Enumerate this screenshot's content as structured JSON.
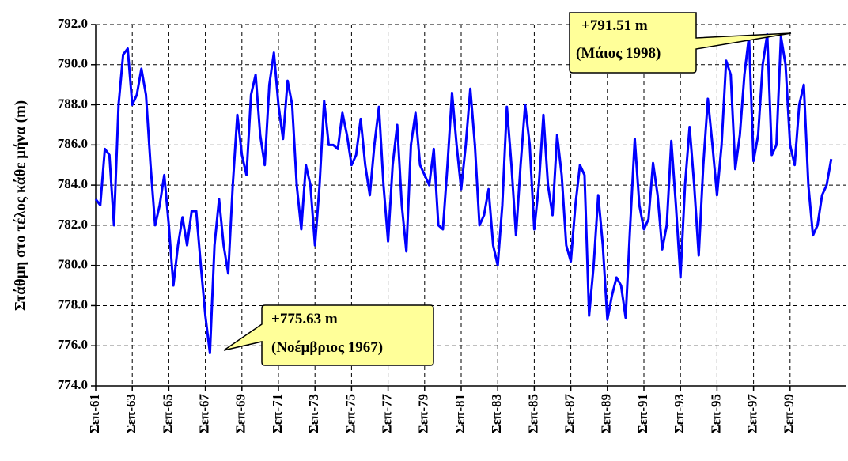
{
  "chart_data": {
    "type": "line",
    "y_label": "Στάθμη στο τέλος κάθε μήνα (m)",
    "categories": [
      "Σεπ-61",
      null,
      null,
      null,
      null,
      null,
      null,
      null,
      "Σεπ-63",
      null,
      null,
      null,
      null,
      null,
      null,
      null,
      "Σεπ-65",
      null,
      null,
      null,
      null,
      null,
      null,
      null,
      "Σεπ-67",
      null,
      null,
      null,
      null,
      null,
      null,
      null,
      "Σεπ-69",
      null,
      null,
      null,
      null,
      null,
      null,
      null,
      "Σεπ-71",
      null,
      null,
      null,
      null,
      null,
      null,
      null,
      "Σεπ-73",
      null,
      null,
      null,
      null,
      null,
      null,
      null,
      "Σεπ-75",
      null,
      null,
      null,
      null,
      null,
      null,
      null,
      "Σεπ-77",
      null,
      null,
      null,
      null,
      null,
      null,
      null,
      "Σεπ-79",
      null,
      null,
      null,
      null,
      null,
      null,
      null,
      "Σεπ-81",
      null,
      null,
      null,
      null,
      null,
      null,
      null,
      "Σεπ-83",
      null,
      null,
      null,
      null,
      null,
      null,
      null,
      "Σεπ-85",
      null,
      null,
      null,
      null,
      null,
      null,
      null,
      "Σεπ-87",
      null,
      null,
      null,
      null,
      null,
      null,
      null,
      "Σεπ-89",
      null,
      null,
      null,
      null,
      null,
      null,
      null,
      "Σεπ-91",
      null,
      null,
      null,
      null,
      null,
      null,
      null,
      "Σεπ-93",
      null,
      null,
      null,
      null,
      null,
      null,
      null,
      "Σεπ-95",
      null,
      null,
      null,
      null,
      null,
      null,
      null,
      "Σεπ-97",
      null,
      null,
      null,
      null,
      null,
      null,
      null,
      "Σεπ-99",
      null,
      null,
      null,
      null,
      null,
      null,
      null,
      null,
      null
    ],
    "series": [
      {
        "name": "Στάθμη",
        "color": "#0000ff",
        "values": [
          783.3,
          783,
          785.8,
          785.5,
          782,
          788,
          790.5,
          790.8,
          788,
          788.5,
          789.8,
          788.5,
          785,
          782,
          783,
          784.5,
          782,
          779,
          781,
          782.4,
          781,
          782.7,
          782.7,
          780,
          777.5,
          775.63,
          781,
          783.3,
          781,
          779.6,
          784,
          787.5,
          785.5,
          784.5,
          788.5,
          789.5,
          786.5,
          785,
          789,
          790.6,
          788,
          786.3,
          789.2,
          788,
          784,
          781.8,
          785,
          784,
          781,
          784,
          788.2,
          786,
          786,
          785.8,
          787.6,
          786.5,
          785,
          785.5,
          787.3,
          785,
          783.5,
          786,
          787.9,
          784,
          781.2,
          785,
          787,
          783,
          780.7,
          786,
          787.6,
          785,
          784.5,
          784,
          785.8,
          782,
          781.8,
          785,
          788.6,
          786,
          783.8,
          786,
          788.8,
          786,
          782,
          782.5,
          783.8,
          781,
          780,
          783,
          787.9,
          785,
          781.5,
          785,
          788,
          786,
          781.8,
          784,
          787.5,
          784,
          782.5,
          786.5,
          784.5,
          781,
          780.2,
          783,
          785,
          784.5,
          777.5,
          780,
          783.5,
          781,
          777.3,
          778.5,
          779.4,
          779,
          777.4,
          782,
          786.3,
          783,
          781.8,
          782.3,
          785.1,
          783.5,
          780.8,
          782,
          786.2,
          783,
          779.4,
          784,
          786.9,
          784,
          780.5,
          785,
          788.3,
          786,
          783.5,
          786,
          790.2,
          789.5,
          784.8,
          786.5,
          789.5,
          791.4,
          785.2,
          786.5,
          790,
          791.51,
          785.5,
          786,
          791.4,
          790,
          786,
          785,
          788,
          789,
          784,
          781.5,
          782,
          783.5,
          784,
          785.3
        ]
      }
    ],
    "ylim": [
      774,
      792
    ],
    "yticks": [
      {
        "value": 774,
        "label": "774.0"
      },
      {
        "value": 776,
        "label": "776.0"
      },
      {
        "value": 778,
        "label": "778.0"
      },
      {
        "value": 780,
        "label": "780.0"
      },
      {
        "value": 782,
        "label": "782.0"
      },
      {
        "value": 784,
        "label": "784.0"
      },
      {
        "value": 786,
        "label": "786.0"
      },
      {
        "value": 788,
        "label": "788.0"
      },
      {
        "value": 790,
        "label": "790.0"
      },
      {
        "value": 792,
        "label": "792.0"
      }
    ],
    "grid": true,
    "annotations": [
      {
        "text": "+791.51 m",
        "note": "(Μάιος 1998)"
      },
      {
        "text": "+775.63 m",
        "note": "(Νοέμβριος 1967)"
      }
    ]
  }
}
